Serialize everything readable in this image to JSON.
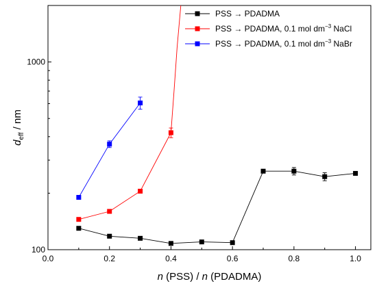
{
  "chart_data": {
    "type": "scatter",
    "xlabel": {
      "italic": "n",
      "rest": " (PSS) / ",
      "italic2": "n",
      "rest2": " (PDADMA)"
    },
    "ylabel": {
      "italic": "d",
      "sub": "eff",
      "rest": " / nm"
    },
    "x_scale": "linear",
    "y_scale": "log",
    "xlim": [
      0.0,
      1.05
    ],
    "ylim": [
      100,
      2000
    ],
    "x_ticks": [
      0.0,
      0.2,
      0.4,
      0.6,
      0.8,
      1.0
    ],
    "x_tick_labels": [
      "0.0",
      "0.2",
      "0.4",
      "0.6",
      "0.8",
      "1.0"
    ],
    "y_ticks": [
      100,
      1000
    ],
    "y_tick_labels": [
      "100",
      "1000"
    ],
    "legend_position": "top-right",
    "series": [
      {
        "name": "PSS → PDADMA",
        "color": "#000000",
        "x": [
          0.1,
          0.2,
          0.3,
          0.4,
          0.5,
          0.6,
          0.7,
          0.8,
          0.9,
          1.0
        ],
        "y": [
          130,
          118,
          115,
          108,
          110,
          109,
          262,
          262,
          245,
          255
        ],
        "err": [
          0,
          0,
          0,
          0,
          0,
          0,
          0,
          12,
          12,
          0
        ]
      },
      {
        "name": "PSS → PDADMA, 0.1 mol dm",
        "name_sup": "−3",
        "name_tail": " NaCl",
        "color": "#ff0000",
        "x": [
          0.1,
          0.2,
          0.3,
          0.4
        ],
        "y": [
          145,
          160,
          205,
          420
        ],
        "err": [
          0,
          0,
          0,
          25
        ],
        "curve_tail": [
          [
            0.4,
            420
          ],
          [
            0.41,
            700
          ],
          [
            0.42,
            1200
          ],
          [
            0.432,
            2000
          ]
        ]
      },
      {
        "name": "PSS → PDADMA, 0.1 mol dm",
        "name_sup": "−3",
        "name_tail": " NaBr",
        "color": "#0000ff",
        "x": [
          0.1,
          0.2,
          0.3
        ],
        "y": [
          190,
          365,
          605
        ],
        "err": [
          0,
          15,
          45
        ]
      }
    ]
  }
}
